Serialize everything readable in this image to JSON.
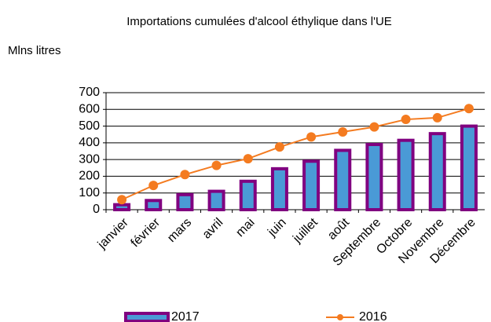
{
  "chart_data": {
    "type": "bar",
    "title": "Importations cumulées d'alcool éthylique dans l'UE",
    "y_axis_label": "Mlns litres",
    "categories": [
      "janvier",
      "février",
      "mars",
      "avril",
      "mai",
      "juin",
      "juillet",
      "août",
      "Septembre",
      "Octobre",
      "Novembre",
      "Décembre"
    ],
    "series": [
      {
        "name": "2017",
        "type": "bar",
        "color": "#4a9ad6",
        "border_color": "#800080",
        "values": [
          30,
          55,
          90,
          110,
          170,
          245,
          290,
          355,
          390,
          415,
          455,
          500
        ]
      },
      {
        "name": "2016",
        "type": "line",
        "color": "#f47b20",
        "values": [
          60,
          145,
          210,
          265,
          305,
          375,
          435,
          465,
          495,
          540,
          550,
          605
        ]
      }
    ],
    "ylim": [
      0,
      700
    ],
    "yticks": [
      0,
      100,
      200,
      300,
      400,
      500,
      600,
      700
    ],
    "grid": true,
    "legend": "bottom"
  }
}
